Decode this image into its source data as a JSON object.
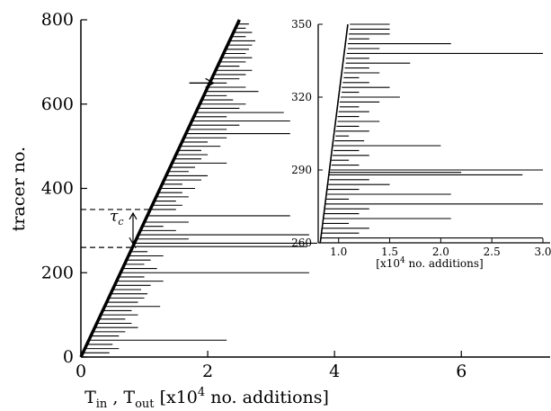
{
  "chart_data": [
    {
      "type": "line",
      "panel": "main",
      "xlabel_parts": {
        "tin": "T",
        "tin_sub": "in",
        "sep": " , ",
        "tout": "T",
        "tout_sub": "out",
        "open": "  [x10",
        "exp": "4",
        "close": " no. additions]"
      },
      "ylabel": "tracer no.",
      "xlim": [
        0,
        7.4
      ],
      "ylim": [
        0,
        800
      ],
      "xticks": [
        "0",
        "2",
        "4",
        "6"
      ],
      "yticks": [
        "0",
        "200",
        "400",
        "600",
        "800"
      ],
      "series": [
        {
          "values_note": "",
          "x": [
            0.0,
            2.5
          ],
          "y": [
            0,
            800
          ]
        }
      ],
      "residence_segments": {
        "columns": [
          "tracer_no",
          "t_in",
          "t_out"
        ],
        "rows": [
          [
            10,
            0.03,
            0.45
          ],
          [
            20,
            0.06,
            0.6
          ],
          [
            30,
            0.09,
            0.5
          ],
          [
            40,
            0.13,
            2.3
          ],
          [
            50,
            0.16,
            0.6
          ],
          [
            60,
            0.19,
            0.7
          ],
          [
            70,
            0.22,
            0.9
          ],
          [
            80,
            0.25,
            0.8
          ],
          [
            90,
            0.28,
            0.7
          ],
          [
            100,
            0.31,
            0.9
          ],
          [
            110,
            0.34,
            0.8
          ],
          [
            120,
            0.37,
            1.25
          ],
          [
            130,
            0.41,
            0.9
          ],
          [
            140,
            0.44,
            1.0
          ],
          [
            150,
            0.47,
            1.05
          ],
          [
            160,
            0.5,
            0.95
          ],
          [
            170,
            0.53,
            1.1
          ],
          [
            180,
            0.56,
            1.3
          ],
          [
            190,
            0.59,
            1.0
          ],
          [
            200,
            0.62,
            3.6
          ],
          [
            210,
            0.66,
            1.2
          ],
          [
            220,
            0.69,
            1.0
          ],
          [
            230,
            0.72,
            1.1
          ],
          [
            240,
            0.75,
            1.3
          ],
          [
            250,
            0.78,
            1.05
          ],
          [
            262,
            0.82,
            3.57
          ],
          [
            270,
            0.84,
            3.8
          ],
          [
            280,
            0.87,
            1.7
          ],
          [
            290,
            0.91,
            3.6
          ],
          [
            300,
            0.94,
            1.5
          ],
          [
            310,
            0.97,
            1.3
          ],
          [
            320,
            1.0,
            1.7
          ],
          [
            335,
            1.05,
            3.3
          ],
          [
            350,
            1.09,
            1.5
          ],
          [
            360,
            1.13,
            1.6
          ],
          [
            370,
            1.16,
            1.5
          ],
          [
            380,
            1.19,
            1.7
          ],
          [
            390,
            1.22,
            1.6
          ],
          [
            400,
            1.25,
            1.8
          ],
          [
            410,
            1.28,
            1.6
          ],
          [
            420,
            1.31,
            1.9
          ],
          [
            430,
            1.34,
            2.0
          ],
          [
            440,
            1.38,
            1.7
          ],
          [
            450,
            1.41,
            1.8
          ],
          [
            460,
            1.44,
            2.3
          ],
          [
            470,
            1.47,
            1.9
          ],
          [
            480,
            1.5,
            2.0
          ],
          [
            490,
            1.53,
            1.9
          ],
          [
            500,
            1.56,
            2.2
          ],
          [
            510,
            1.59,
            2.0
          ],
          [
            520,
            1.63,
            2.3
          ],
          [
            530,
            1.66,
            3.3
          ],
          [
            540,
            1.69,
            2.3
          ],
          [
            550,
            1.72,
            2.5
          ],
          [
            560,
            1.75,
            3.3
          ],
          [
            570,
            1.78,
            2.3
          ],
          [
            580,
            1.81,
            3.2
          ],
          [
            590,
            1.84,
            2.5
          ],
          [
            600,
            1.88,
            2.6
          ],
          [
            610,
            1.91,
            2.4
          ],
          [
            620,
            1.94,
            2.3
          ],
          [
            630,
            1.97,
            2.8
          ],
          [
            640,
            2.0,
            2.6
          ],
          [
            650,
            2.03,
            2.3
          ],
          [
            660,
            2.06,
            2.5
          ],
          [
            670,
            2.09,
            2.6
          ],
          [
            680,
            2.13,
            2.7
          ],
          [
            690,
            2.16,
            2.5
          ],
          [
            700,
            2.19,
            2.6
          ],
          [
            710,
            2.22,
            2.7
          ],
          [
            720,
            2.25,
            2.6
          ],
          [
            730,
            2.28,
            2.65
          ],
          [
            740,
            2.31,
            2.7
          ],
          [
            750,
            2.34,
            2.75
          ],
          [
            760,
            2.38,
            2.6
          ],
          [
            770,
            2.41,
            2.7
          ],
          [
            780,
            2.44,
            2.6
          ],
          [
            790,
            2.47,
            2.65
          ]
        ]
      },
      "annotations": {
        "tau": "τ",
        "tau_sub": "c",
        "tau_range": [
          260,
          350
        ],
        "arrow_at": [
          2.05,
          650
        ]
      }
    },
    {
      "type": "line",
      "panel": "inset",
      "xlabel_parts": {
        "open": "[x10",
        "exp": "4",
        "close": " no. additions]"
      },
      "xlim": [
        0.8,
        3.0
      ],
      "ylim": [
        260,
        350
      ],
      "xticks": [
        "1.0",
        "1.5",
        "2.0",
        "2.5",
        "3.0"
      ],
      "yticks": [
        "260",
        "290",
        "320",
        "350"
      ],
      "series": [
        {
          "x": [
            0.82,
            1.09
          ],
          "y": [
            260,
            350
          ]
        }
      ],
      "residence_segments": {
        "columns": [
          "tracer_no",
          "t_in",
          "t_out"
        ],
        "rows": [
          [
            262,
            0.83,
            3.0
          ],
          [
            264,
            0.83,
            1.2
          ],
          [
            266,
            0.84,
            1.3
          ],
          [
            268,
            0.85,
            1.1
          ],
          [
            270,
            0.85,
            2.1
          ],
          [
            272,
            0.86,
            1.2
          ],
          [
            274,
            0.87,
            1.3
          ],
          [
            276,
            0.87,
            3.0
          ],
          [
            278,
            0.88,
            1.1
          ],
          [
            280,
            0.89,
            2.1
          ],
          [
            282,
            0.89,
            1.2
          ],
          [
            284,
            0.9,
            1.5
          ],
          [
            286,
            0.91,
            1.3
          ],
          [
            288,
            0.91,
            2.8
          ],
          [
            289,
            0.91,
            2.2
          ],
          [
            290,
            0.92,
            3.0
          ],
          [
            292,
            0.93,
            1.2
          ],
          [
            294,
            0.93,
            1.1
          ],
          [
            296,
            0.94,
            1.3
          ],
          [
            298,
            0.95,
            1.2
          ],
          [
            300,
            0.95,
            2.0
          ],
          [
            302,
            0.96,
            1.25
          ],
          [
            304,
            0.97,
            1.1
          ],
          [
            306,
            0.97,
            1.3
          ],
          [
            308,
            0.98,
            1.2
          ],
          [
            310,
            0.99,
            1.4
          ],
          [
            312,
            0.99,
            1.2
          ],
          [
            314,
            1.0,
            1.3
          ],
          [
            316,
            1.01,
            1.2
          ],
          [
            318,
            1.01,
            1.4
          ],
          [
            320,
            1.02,
            1.6
          ],
          [
            322,
            1.03,
            1.2
          ],
          [
            324,
            1.03,
            1.5
          ],
          [
            326,
            1.04,
            1.3
          ],
          [
            328,
            1.05,
            1.2
          ],
          [
            330,
            1.05,
            1.4
          ],
          [
            332,
            1.06,
            1.3
          ],
          [
            334,
            1.07,
            1.7
          ],
          [
            336,
            1.07,
            1.3
          ],
          [
            338,
            1.08,
            3.0
          ],
          [
            340,
            1.09,
            1.4
          ],
          [
            342,
            1.09,
            2.1
          ],
          [
            344,
            1.1,
            1.3
          ],
          [
            346,
            1.1,
            1.5
          ],
          [
            348,
            1.11,
            1.5
          ],
          [
            350,
            1.11,
            1.5
          ]
        ]
      }
    }
  ]
}
